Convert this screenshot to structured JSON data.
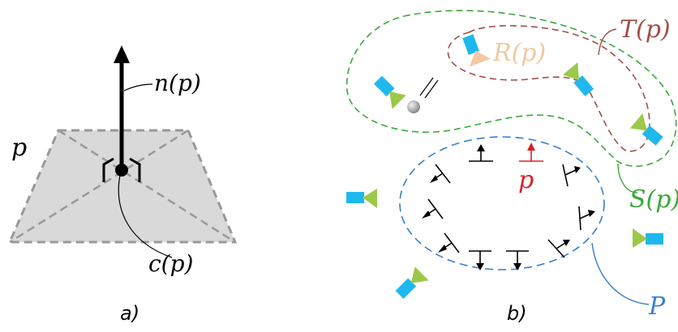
{
  "panel_a": {
    "label_p": "p",
    "label_n": "n(p)",
    "label_c": "c(p)",
    "caption": "a)"
  },
  "panel_b": {
    "label_T": "T(p)",
    "label_R": "R(p)",
    "label_S": "S(p)",
    "label_P": "P",
    "label_p": "p",
    "caption": "b)"
  },
  "colors": {
    "plane_fill": "#d9d9d9",
    "plane_edge": "#999999",
    "black": "#000000",
    "T_curve": "#a0504a",
    "R_label": "#f0c8a0",
    "S_curve": "#3aa83a",
    "P_curve": "#3a7fc8",
    "p_red": "#d8202a",
    "camera_body": "#1fb8ee",
    "camera_lens": "#9cc84a"
  }
}
